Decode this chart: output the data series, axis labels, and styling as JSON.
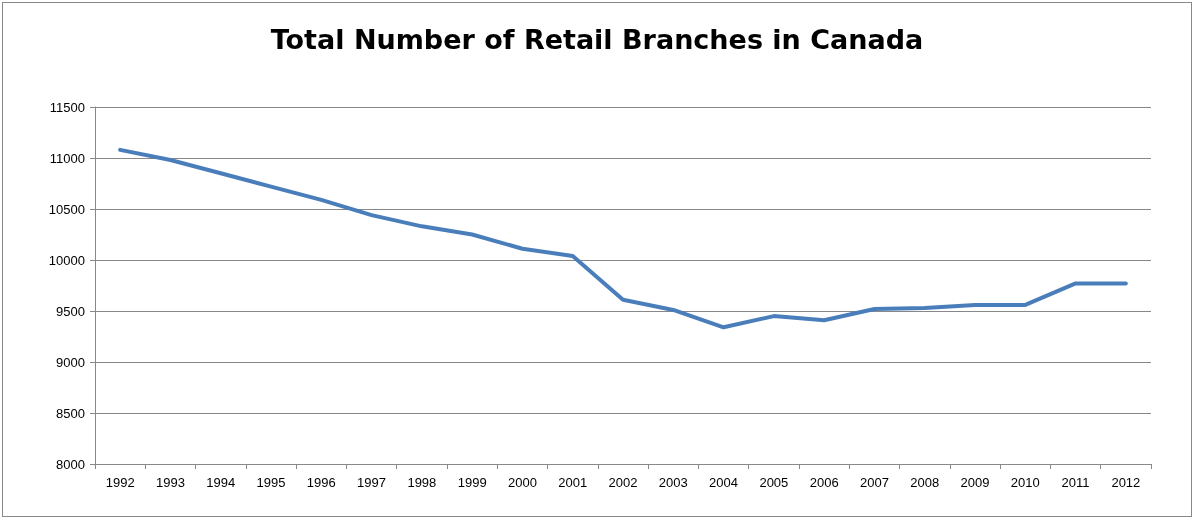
{
  "chart_data": {
    "type": "line",
    "title": "Total Number of Retail Branches in Canada",
    "categories": [
      "1992",
      "1993",
      "1994",
      "1995",
      "1996",
      "1997",
      "1998",
      "1999",
      "2000",
      "2001",
      "2002",
      "2003",
      "2004",
      "2005",
      "2006",
      "2007",
      "2008",
      "2009",
      "2010",
      "2011",
      "2012"
    ],
    "series": [
      {
        "color": "#4a7ebb",
        "values": [
          11080,
          10980,
          10850,
          10720,
          10590,
          10440,
          10330,
          10250,
          10110,
          10040,
          9610,
          9510,
          9340,
          9450,
          9410,
          9520,
          9530,
          9560,
          9560,
          9770,
          9770
        ]
      }
    ],
    "ylim": [
      8000,
      11500
    ],
    "yticks": [
      8000,
      8500,
      9000,
      9500,
      10000,
      10500,
      11000,
      11500
    ],
    "grid": "y",
    "marker": "none",
    "line_style": "solid"
  }
}
